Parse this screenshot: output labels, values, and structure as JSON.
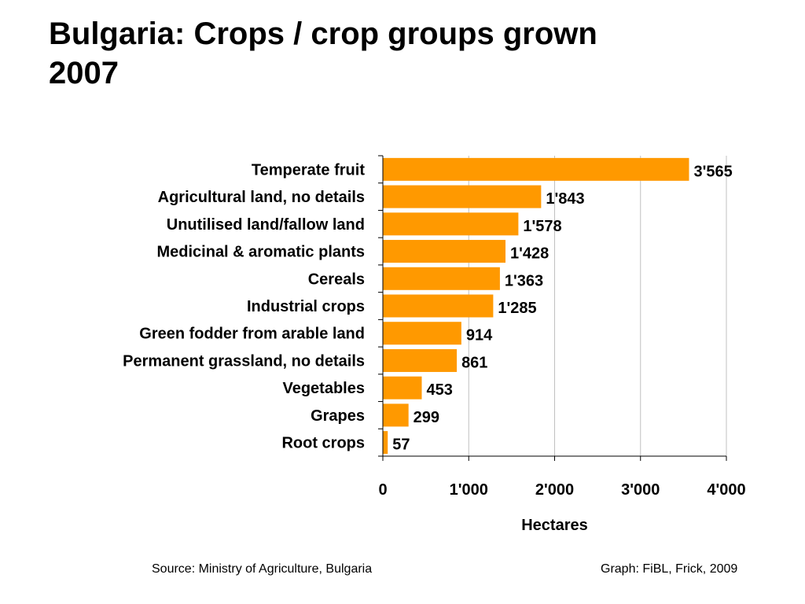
{
  "title_line1": "Bulgaria: Crops / crop groups grown",
  "title_line2": "2007",
  "footer": {
    "source": "Source: Ministry of Agriculture, Bulgaria",
    "graph": "Graph: FiBL, Frick, 2009"
  },
  "colors": {
    "bar": "#FF9900",
    "grid": "#C0C0C0",
    "axis": "#000000"
  },
  "chart_data": {
    "type": "bar",
    "orientation": "horizontal",
    "categories": [
      "Temperate fruit",
      "Agricultural land, no details",
      "Unutilised land/fallow land",
      "Medicinal & aromatic plants",
      "Cereals",
      "Industrial crops",
      "Green fodder from arable land",
      "Permanent grassland, no details",
      "Vegetables",
      "Grapes",
      "Root crops"
    ],
    "values": [
      3565,
      1843,
      1578,
      1428,
      1363,
      1285,
      914,
      861,
      453,
      299,
      57
    ],
    "value_labels": [
      "3'565",
      "1'843",
      "1'578",
      "1'428",
      "1'363",
      "1'285",
      "914",
      "861",
      "453",
      "299",
      "57"
    ],
    "xlabel": "Hectares",
    "ylabel": "",
    "xlim": [
      0,
      4000
    ],
    "x_ticks": [
      0,
      1000,
      2000,
      3000,
      4000
    ],
    "x_tick_labels": [
      "0",
      "1'000",
      "2'000",
      "3'000",
      "4'000"
    ],
    "grid": "vertical"
  }
}
